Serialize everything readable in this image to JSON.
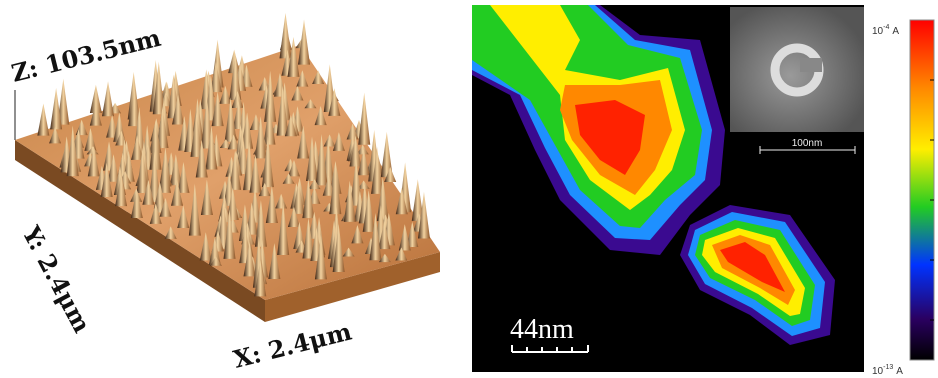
{
  "topography": {
    "z_label": "Z: 103.5nm",
    "y_label": "Y: 2.4μm",
    "x_label": "X: 2.4μm"
  },
  "current_map": {
    "scale_bar": "44nm",
    "inset_scale_bar": "100nm",
    "colorbar": {
      "top": {
        "base": "10",
        "exponent": "-4",
        "unit": "A"
      },
      "bottom": {
        "base": "10",
        "exponent": "-13",
        "unit": "A"
      }
    }
  }
}
